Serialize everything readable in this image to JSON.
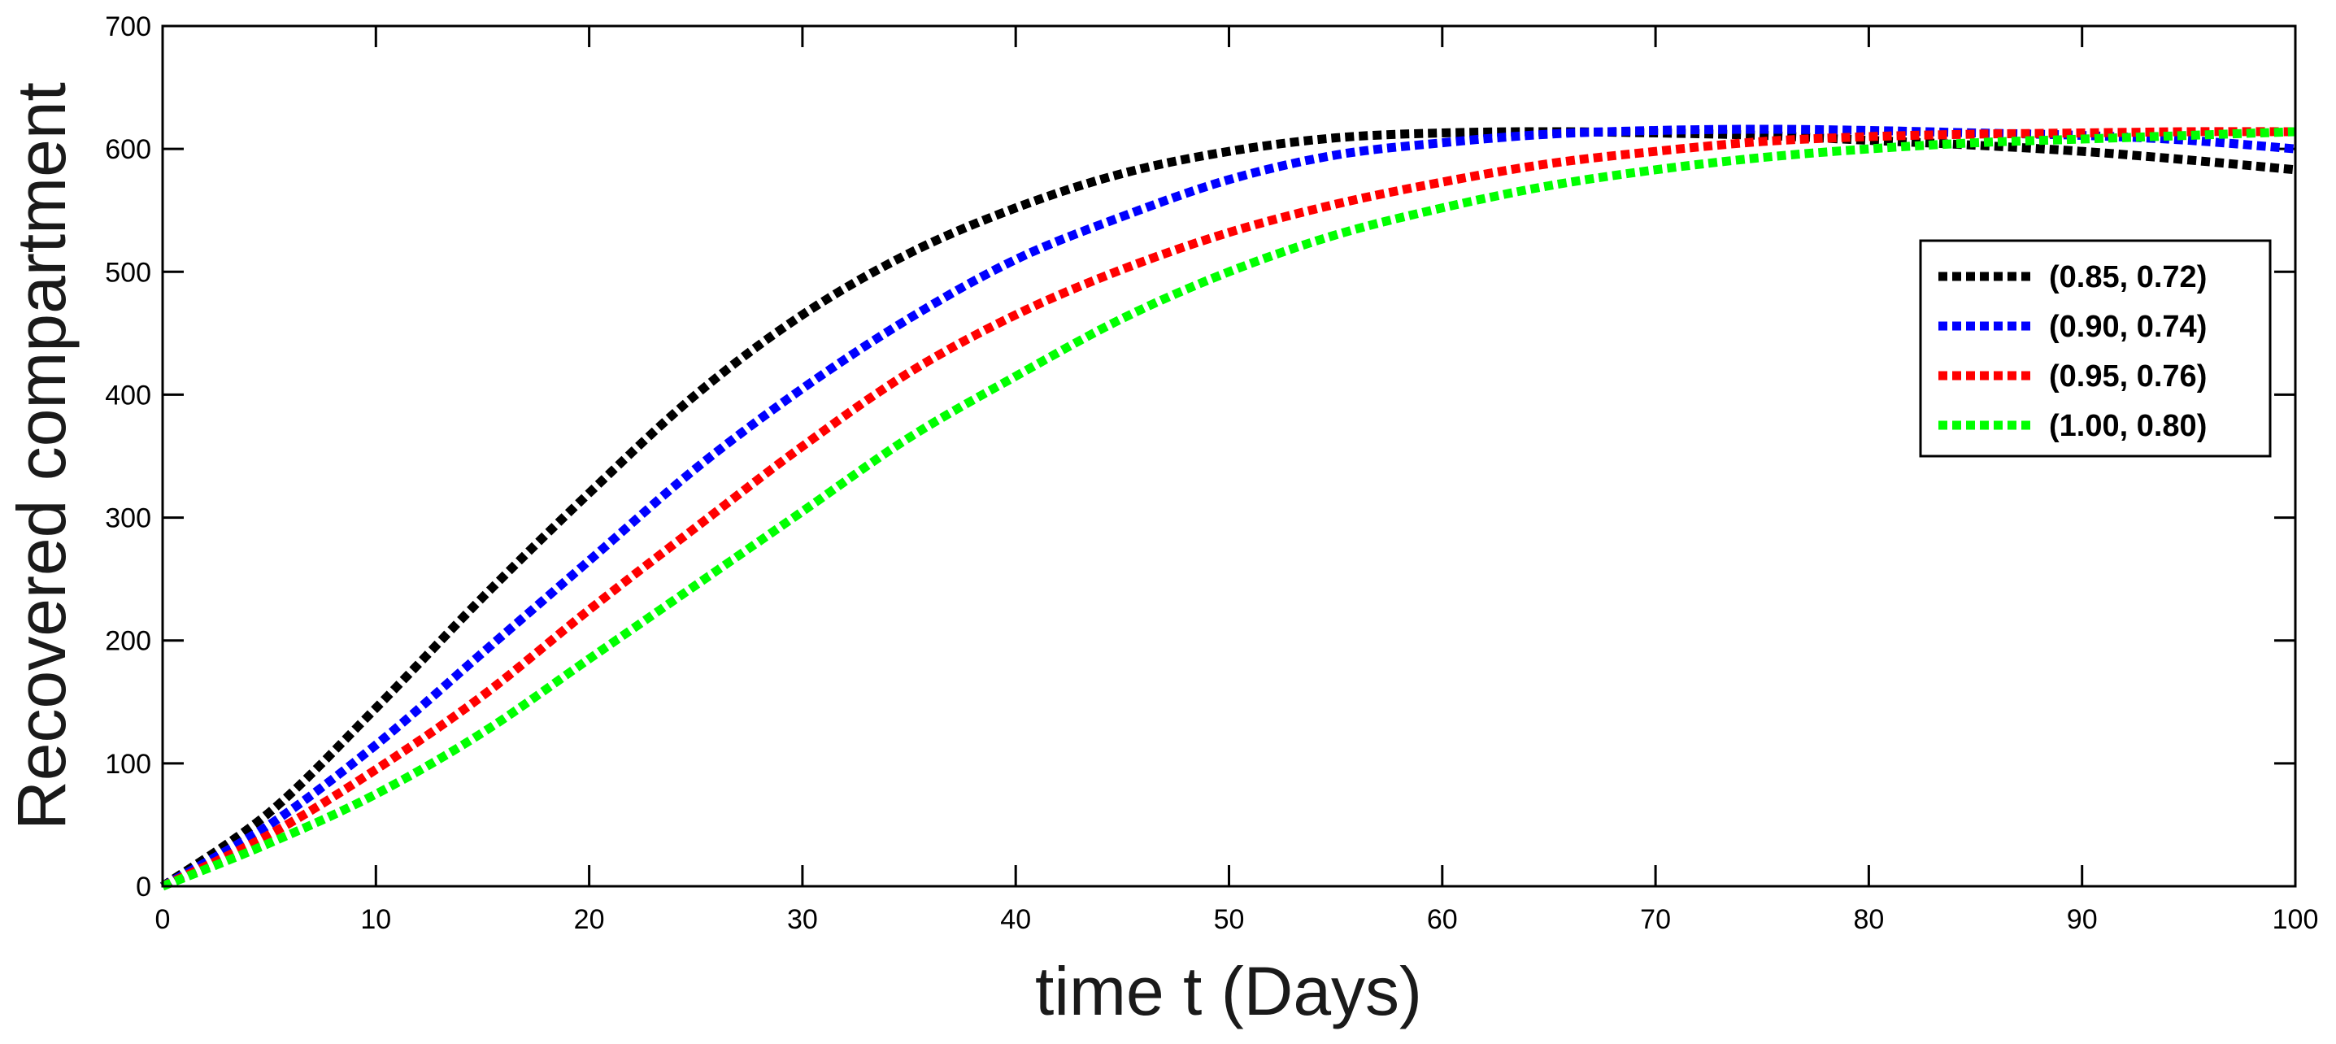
{
  "chart_data": {
    "type": "line",
    "xlabel": "time t (Days)",
    "ylabel": "Recovered compartment",
    "xlim": [
      0,
      100
    ],
    "ylim": [
      0,
      700
    ],
    "xticks": [
      0,
      10,
      20,
      30,
      40,
      50,
      60,
      70,
      80,
      90,
      100
    ],
    "yticks": [
      0,
      100,
      200,
      300,
      400,
      500,
      600,
      700
    ],
    "x_tick_labels": [
      "0",
      "10",
      "20",
      "30",
      "40",
      "50",
      "60",
      "70",
      "80",
      "90",
      "100"
    ],
    "y_tick_labels": [
      "0",
      "100",
      "200",
      "300",
      "400",
      "500",
      "600",
      "700"
    ],
    "grid": false,
    "legend_position": "right",
    "line_style": "dotted",
    "x": [
      0,
      5,
      10,
      15,
      20,
      25,
      30,
      35,
      40,
      45,
      50,
      55,
      60,
      65,
      70,
      75,
      80,
      85,
      90,
      95,
      100
    ],
    "series": [
      {
        "name": "(0.85, 0.72)",
        "color": "#000000",
        "values": [
          0,
          60,
          145,
          235,
          320,
          400,
          465,
          515,
          552,
          580,
          598,
          609,
          613,
          614,
          613,
          611,
          607,
          603,
          598,
          591,
          583
        ]
      },
      {
        "name": "(0.90, 0.74)",
        "color": "#0000ff",
        "values": [
          0,
          50,
          115,
          190,
          265,
          340,
          405,
          462,
          510,
          545,
          575,
          595,
          605,
          612,
          615,
          616,
          615,
          613,
          611,
          607,
          600
        ]
      },
      {
        "name": "(0.95, 0.76)",
        "color": "#ff0000",
        "values": [
          0,
          42,
          95,
          155,
          225,
          292,
          358,
          418,
          465,
          502,
          532,
          555,
          573,
          588,
          598,
          606,
          610,
          612,
          613,
          614,
          614
        ]
      },
      {
        "name": "(1.00, 0.80)",
        "color": "#00ff00",
        "values": [
          0,
          35,
          75,
          125,
          185,
          245,
          305,
          365,
          415,
          462,
          500,
          530,
          552,
          570,
          583,
          593,
          600,
          605,
          608,
          611,
          614
        ]
      }
    ]
  }
}
